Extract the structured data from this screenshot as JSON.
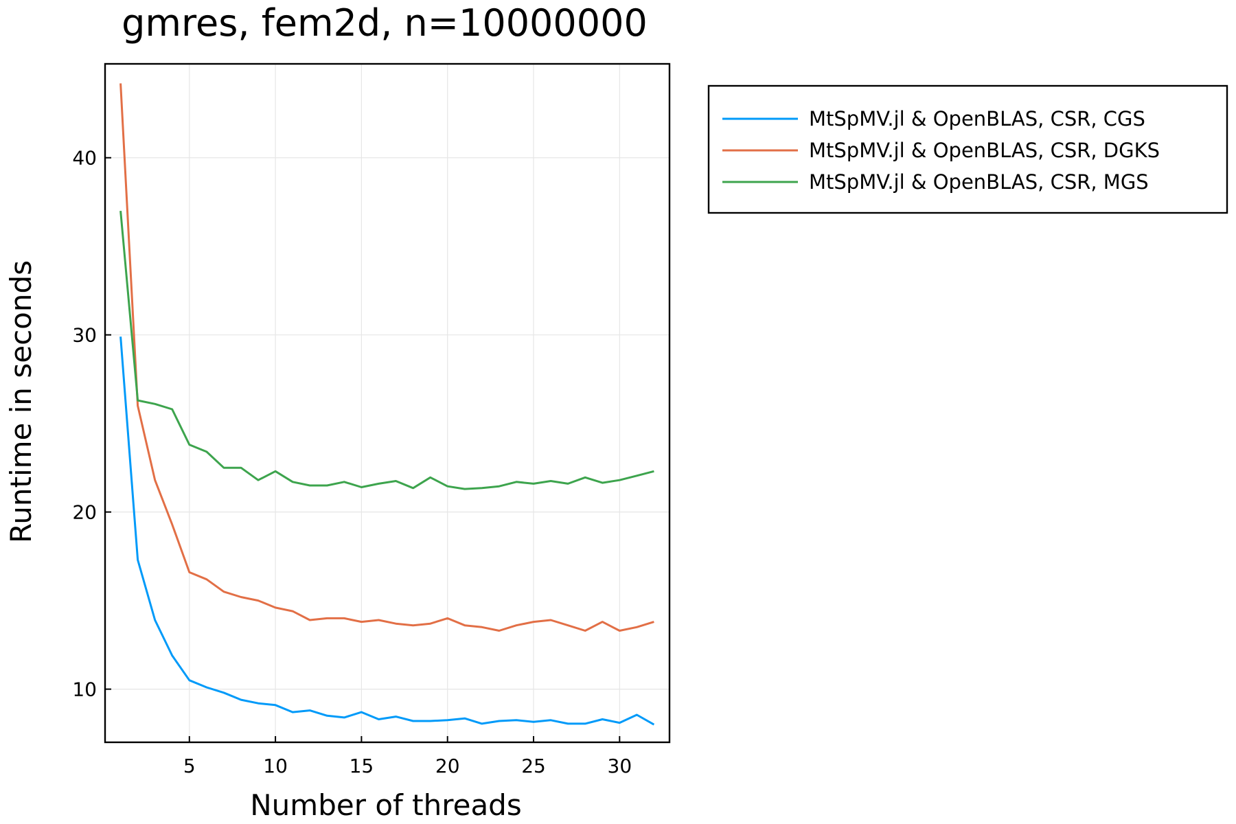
{
  "chart_data": {
    "type": "line",
    "title": "gmres, fem2d, n=10000000",
    "xlabel": "Number of threads",
    "ylabel": "Runtime in seconds",
    "xlim": [
      0.1,
      32.9
    ],
    "ylim": [
      7.0,
      45.3
    ],
    "xticks": [
      5,
      10,
      15,
      20,
      25,
      30
    ],
    "yticks": [
      10,
      20,
      30,
      40
    ],
    "grid": true,
    "legend_position": "outside-top-right",
    "x": [
      1,
      2,
      3,
      4,
      5,
      6,
      7,
      8,
      9,
      10,
      11,
      12,
      13,
      14,
      15,
      16,
      17,
      18,
      19,
      20,
      21,
      22,
      23,
      24,
      25,
      26,
      27,
      28,
      29,
      30,
      31,
      32
    ],
    "series": [
      {
        "name": "MtSpMV.jl & OpenBLAS, CSR, CGS",
        "color": "#009af9",
        "values": [
          29.9,
          17.3,
          13.9,
          11.9,
          10.5,
          10.1,
          9.8,
          9.4,
          9.2,
          9.1,
          8.7,
          8.8,
          8.5,
          8.4,
          8.7,
          8.3,
          8.45,
          8.2,
          8.2,
          8.25,
          8.35,
          8.05,
          8.2,
          8.25,
          8.15,
          8.25,
          8.05,
          8.05,
          8.3,
          8.1,
          8.55,
          8.0
        ]
      },
      {
        "name": "MtSpMV.jl & OpenBLAS, CSR, DGKS",
        "color": "#e26f46",
        "values": [
          44.2,
          26.0,
          21.8,
          19.3,
          16.6,
          16.2,
          15.5,
          15.2,
          15.0,
          14.6,
          14.4,
          13.9,
          14.0,
          14.0,
          13.8,
          13.9,
          13.7,
          13.6,
          13.7,
          14.0,
          13.6,
          13.5,
          13.3,
          13.6,
          13.8,
          13.9,
          13.6,
          13.3,
          13.8,
          13.3,
          13.5,
          13.8
        ]
      },
      {
        "name": "MtSpMV.jl & OpenBLAS, CSR, MGS",
        "color": "#3da44d",
        "values": [
          37.0,
          26.3,
          26.1,
          25.8,
          23.8,
          23.4,
          22.5,
          22.5,
          21.8,
          22.3,
          21.7,
          21.5,
          21.5,
          21.7,
          21.4,
          21.6,
          21.75,
          21.35,
          21.95,
          21.45,
          21.3,
          21.35,
          21.45,
          21.7,
          21.6,
          21.75,
          21.6,
          21.95,
          21.65,
          21.8,
          22.05,
          22.3
        ]
      }
    ]
  }
}
